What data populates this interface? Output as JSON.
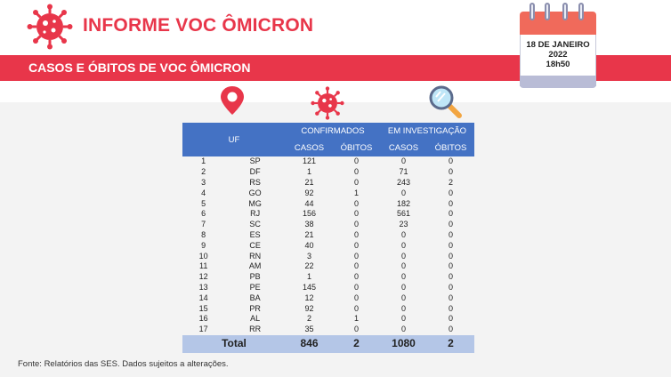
{
  "header": {
    "title": "INFORME VOC ÔMICRON",
    "subtitle": "CASOS E ÓBITOS DE VOC ÔMICRON"
  },
  "calendar": {
    "line1": "18 DE JANEIRO",
    "line2": "2022",
    "line3": "18h50"
  },
  "icons": [
    "virus-icon",
    "map-pin-icon",
    "virus-icon",
    "magnifier-icon",
    "calendar-icon"
  ],
  "colors": {
    "accent": "#e8364a",
    "table_header": "#4472c4",
    "table_total": "#b4c6e7"
  },
  "table": {
    "uf_header": "UF",
    "group_confirmed": "CONFIRMADOS",
    "group_investigation": "EM INVESTIGAÇÃO",
    "cases_header": "CASOS",
    "deaths_header": "ÓBITOS",
    "rows": [
      [
        "1",
        "SP",
        "121",
        "0",
        "0",
        "0"
      ],
      [
        "2",
        "DF",
        "1",
        "0",
        "71",
        "0"
      ],
      [
        "3",
        "RS",
        "21",
        "0",
        "243",
        "2"
      ],
      [
        "4",
        "GO",
        "92",
        "1",
        "0",
        "0"
      ],
      [
        "5",
        "MG",
        "44",
        "0",
        "182",
        "0"
      ],
      [
        "6",
        "RJ",
        "156",
        "0",
        "561",
        "0"
      ],
      [
        "7",
        "SC",
        "38",
        "0",
        "23",
        "0"
      ],
      [
        "8",
        "ES",
        "21",
        "0",
        "0",
        "0"
      ],
      [
        "9",
        "CE",
        "40",
        "0",
        "0",
        "0"
      ],
      [
        "10",
        "RN",
        "3",
        "0",
        "0",
        "0"
      ],
      [
        "11",
        "AM",
        "22",
        "0",
        "0",
        "0"
      ],
      [
        "12",
        "PB",
        "1",
        "0",
        "0",
        "0"
      ],
      [
        "13",
        "PE",
        "145",
        "0",
        "0",
        "0"
      ],
      [
        "14",
        "BA",
        "12",
        "0",
        "0",
        "0"
      ],
      [
        "15",
        "PR",
        "92",
        "0",
        "0",
        "0"
      ],
      [
        "16",
        "AL",
        "2",
        "1",
        "0",
        "0"
      ],
      [
        "17",
        "RR",
        "35",
        "0",
        "0",
        "0"
      ]
    ],
    "total": {
      "label": "Total",
      "confirmed_cases": "846",
      "confirmed_deaths": "2",
      "investigation_cases": "1080",
      "investigation_deaths": "2"
    }
  },
  "footer": {
    "source": "Fonte: Relatórios das SES. Dados sujeitos a alterações."
  }
}
